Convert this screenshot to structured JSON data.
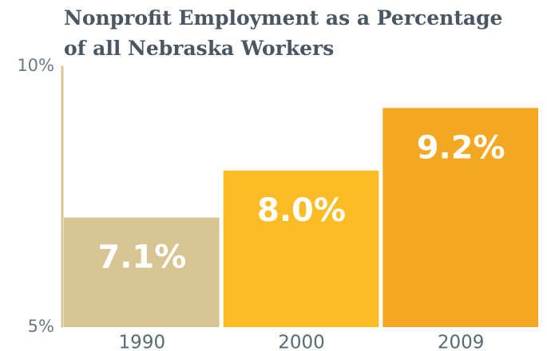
{
  "chart_data": {
    "type": "bar",
    "title": "Nonprofit Employment as a Percentage of all Nebraska Workers",
    "categories": [
      "1990",
      "2000",
      "2009"
    ],
    "values": [
      7.1,
      8.0,
      9.2
    ],
    "value_labels": [
      "7.1%",
      "8.0%",
      "9.2%"
    ],
    "colors": [
      "#d8c594",
      "#fbbc26",
      "#f4a722"
    ],
    "ylim": [
      5,
      10
    ],
    "yticks": [
      {
        "value": 5,
        "label": "5%"
      },
      {
        "value": 10,
        "label": "10%"
      }
    ]
  }
}
